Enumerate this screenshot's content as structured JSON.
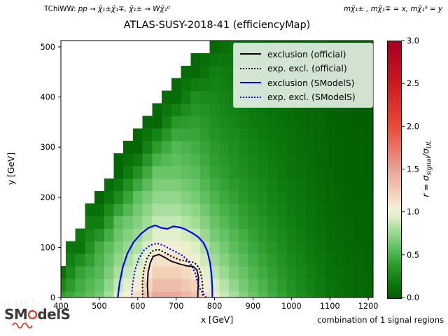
{
  "header": {
    "process_prefix": "TChiWW: ",
    "process_math": "pp → χ̃₁±χ̃₁∓,  χ̃₁± → Wχ̃₁⁰",
    "mass_note": "mχ̃₁± , mχ̃₁∓ = x,  mχ̃₁⁰ = y"
  },
  "title": "ATLAS-SUSY-2018-41 (efficiencyMap)",
  "footer_note": "combination of 1 signal regions",
  "logo": {
    "left": "SM",
    "right": "delS"
  },
  "axes": {
    "xlabel": "x [GeV]",
    "ylabel": "y [GeV]"
  },
  "colorbar_label": {
    "pre": "r = σ",
    "sub_a": "signal",
    "mid": "/σ",
    "sub_b": "UL"
  },
  "legend": [
    {
      "label": "exclusion (official)",
      "color": "#000000",
      "style": "solid"
    },
    {
      "label": "exp. excl. (official)",
      "color": "#000000",
      "style": "dotted"
    },
    {
      "label": "exclusion (SModelS)",
      "color": "#0000ff",
      "style": "solid"
    },
    {
      "label": "exp. excl. (SModelS)",
      "color": "#0000ff",
      "style": "dotted"
    }
  ],
  "chart_data": {
    "type": "heatmap",
    "title": "ATLAS-SUSY-2018-41 (efficiencyMap)",
    "xlabel": "x [GeV]",
    "ylabel": "y [GeV]",
    "zlabel": "r = sigma_signal/sigma_UL",
    "xlim": [
      400,
      1212.5
    ],
    "ylim": [
      0,
      512.5
    ],
    "zlim": [
      0,
      3
    ],
    "xticks": [
      "400",
      "500",
      "600",
      "700",
      "800",
      "900",
      "1000",
      "1100",
      "1200"
    ],
    "xtick_values": [
      400,
      500,
      600,
      700,
      800,
      900,
      1000,
      1100,
      1200
    ],
    "yticks": [
      "0",
      "100",
      "200",
      "300",
      "400",
      "500"
    ],
    "ytick_values": [
      0,
      100,
      200,
      300,
      400,
      500
    ],
    "colorbar_ticks": [
      "0.0",
      "0.5",
      "1.0",
      "1.5",
      "2.0",
      "2.5",
      "3.0"
    ],
    "colorbar_tick_values": [
      0,
      0.5,
      1.0,
      1.5,
      2.0,
      2.5,
      3.0
    ],
    "cell_gev": 25,
    "grid_step_gev": 50,
    "x_nodes": [
      400,
      450,
      500,
      550,
      600,
      650,
      700,
      750,
      800,
      850,
      900,
      950,
      1000,
      1050,
      1100,
      1150,
      1200
    ],
    "y_nodes": [
      0,
      50,
      100,
      150,
      200,
      250,
      300,
      350,
      400,
      450,
      500
    ],
    "r_values": [
      [
        0.41,
        0.52,
        0.65,
        0.95,
        1.15,
        1.45,
        1.45,
        1.3,
        1.0,
        0.8,
        0.62,
        0.48,
        0.35,
        0.25,
        0.15,
        0.1,
        0.07
      ],
      [
        0.13,
        0.43,
        0.55,
        0.81,
        0.98,
        1.23,
        1.23,
        1.11,
        0.85,
        0.68,
        0.53,
        0.41,
        0.3,
        0.21,
        0.13,
        0.09,
        0.06
      ],
      [
        null,
        0.16,
        0.47,
        0.68,
        0.83,
        1.04,
        1.04,
        0.94,
        0.72,
        0.58,
        0.45,
        0.35,
        0.25,
        0.18,
        0.11,
        0.07,
        0.05
      ],
      [
        null,
        null,
        0.2,
        0.58,
        0.7,
        0.88,
        0.88,
        0.79,
        0.61,
        0.49,
        0.38,
        0.29,
        0.21,
        0.15,
        0.09,
        0.06,
        0.04
      ],
      [
        null,
        null,
        0.05,
        0.28,
        0.59,
        0.74,
        0.74,
        0.66,
        0.51,
        0.41,
        0.32,
        0.24,
        0.18,
        0.13,
        0.08,
        0.05,
        0.04
      ],
      [
        null,
        null,
        null,
        0.06,
        0.32,
        0.62,
        0.62,
        0.56,
        0.43,
        0.34,
        0.27,
        0.21,
        0.15,
        0.11,
        0.06,
        0.04,
        0.03
      ],
      [
        null,
        null,
        null,
        null,
        0.06,
        0.39,
        0.54,
        0.48,
        0.37,
        0.3,
        0.23,
        0.18,
        0.13,
        0.09,
        0.06,
        0.04,
        0.03
      ],
      [
        null,
        null,
        null,
        null,
        null,
        0.08,
        0.36,
        0.4,
        0.31,
        0.25,
        0.19,
        0.15,
        0.11,
        0.08,
        0.05,
        0.03,
        0.02
      ],
      [
        null,
        null,
        null,
        null,
        null,
        null,
        0.09,
        0.3,
        0.26,
        0.21,
        0.16,
        0.12,
        0.09,
        0.07,
        0.04,
        0.03,
        0.02
      ],
      [
        null,
        null,
        null,
        null,
        null,
        null,
        null,
        0.09,
        0.21,
        0.18,
        0.14,
        0.11,
        0.08,
        0.06,
        0.03,
        0.02,
        0.01
      ],
      [
        null,
        null,
        null,
        null,
        null,
        null,
        null,
        null,
        0.08,
        0.15,
        0.12,
        0.09,
        0.07,
        0.05,
        0.03,
        0.02,
        0.01
      ]
    ],
    "row_min_x": [
      400,
      400,
      400,
      425,
      425,
      450,
      475,
      475,
      500,
      525,
      550,
      550,
      575,
      600,
      625,
      650,
      675,
      700,
      725,
      750,
      800
    ],
    "colormap_stops": [
      [
        0.0,
        "#005c00"
      ],
      [
        0.2,
        "#0f7d0f"
      ],
      [
        0.4,
        "#2f9e2f"
      ],
      [
        0.6,
        "#63c263"
      ],
      [
        0.8,
        "#a5de9b"
      ],
      [
        0.95,
        "#dff0c8"
      ],
      [
        1.05,
        "#f5efd8"
      ],
      [
        1.2,
        "#f4d6ba"
      ],
      [
        1.35,
        "#eebca9"
      ],
      [
        1.5,
        "#e7a39b"
      ],
      [
        1.75,
        "#e97766"
      ],
      [
        2.0,
        "#e84b38"
      ],
      [
        2.5,
        "#cc1b1f"
      ],
      [
        3.0,
        "#a50021"
      ]
    ],
    "contours": {
      "exclusion_official": [
        [
          627,
          0
        ],
        [
          625,
          25
        ],
        [
          627,
          50
        ],
        [
          632,
          68
        ],
        [
          640,
          82
        ],
        [
          655,
          86
        ],
        [
          670,
          80
        ],
        [
          688,
          72
        ],
        [
          708,
          67
        ],
        [
          728,
          63
        ],
        [
          744,
          62
        ],
        [
          754,
          55
        ],
        [
          758,
          40
        ],
        [
          757,
          20
        ],
        [
          756,
          0
        ]
      ],
      "exp_excl_official": [
        [
          613,
          0
        ],
        [
          612,
          30
        ],
        [
          616,
          55
        ],
        [
          624,
          78
        ],
        [
          636,
          92
        ],
        [
          653,
          96
        ],
        [
          670,
          90
        ],
        [
          690,
          81
        ],
        [
          710,
          75
        ],
        [
          730,
          72
        ],
        [
          747,
          70
        ],
        [
          759,
          60
        ],
        [
          766,
          42
        ],
        [
          769,
          22
        ],
        [
          769,
          0
        ]
      ],
      "exclusion_smodels": [
        [
          548,
          0
        ],
        [
          553,
          30
        ],
        [
          561,
          60
        ],
        [
          573,
          88
        ],
        [
          589,
          110
        ],
        [
          608,
          127
        ],
        [
          628,
          139
        ],
        [
          646,
          144
        ],
        [
          661,
          139
        ],
        [
          677,
          137
        ],
        [
          693,
          142
        ],
        [
          709,
          140
        ],
        [
          724,
          136
        ],
        [
          741,
          129
        ],
        [
          757,
          121
        ],
        [
          771,
          109
        ],
        [
          781,
          93
        ],
        [
          788,
          70
        ],
        [
          792,
          45
        ],
        [
          794,
          20
        ],
        [
          794,
          0
        ]
      ],
      "exp_excl_smodels": [
        [
          584,
          0
        ],
        [
          587,
          28
        ],
        [
          593,
          55
        ],
        [
          603,
          78
        ],
        [
          616,
          94
        ],
        [
          632,
          104
        ],
        [
          650,
          108
        ],
        [
          667,
          104
        ],
        [
          683,
          97
        ],
        [
          699,
          91
        ],
        [
          714,
          85
        ],
        [
          728,
          76
        ],
        [
          740,
          64
        ],
        [
          749,
          50
        ],
        [
          754,
          35
        ],
        [
          760,
          20
        ],
        [
          770,
          8
        ],
        [
          778,
          0
        ]
      ]
    }
  }
}
